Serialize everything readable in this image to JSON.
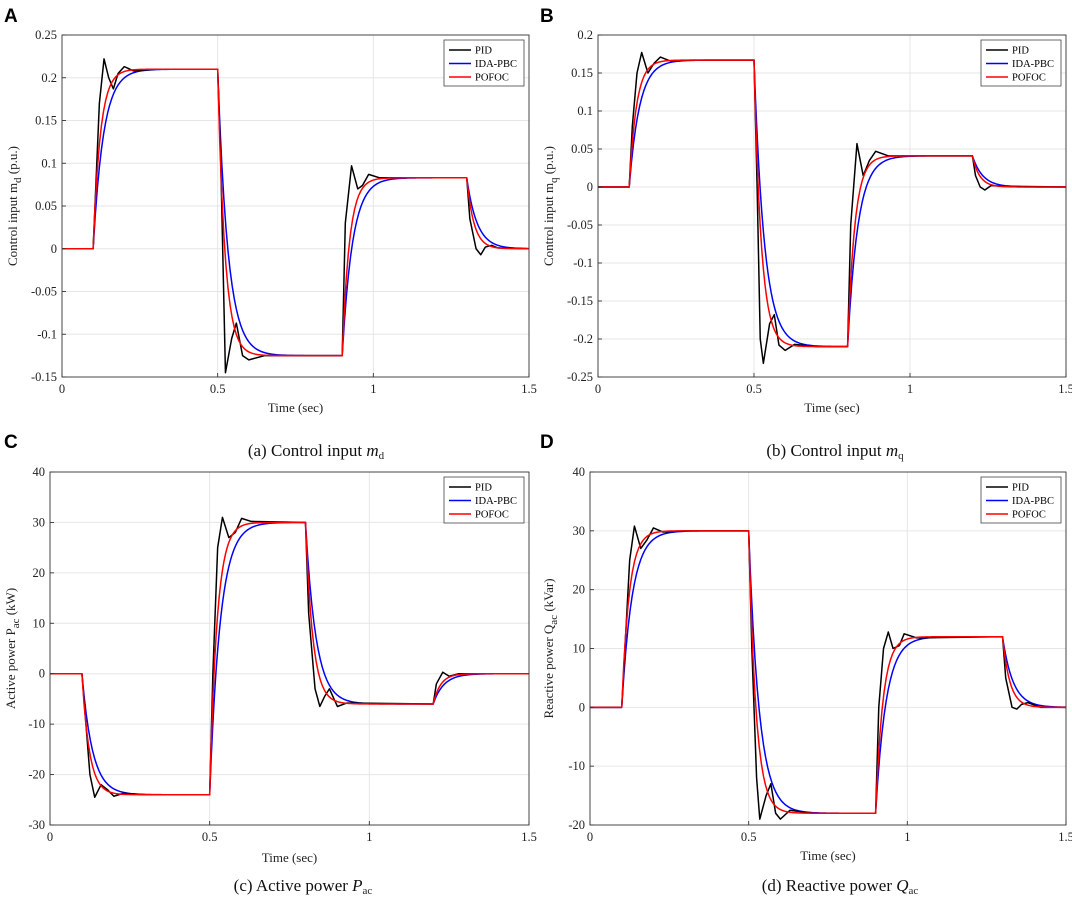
{
  "figure": {
    "captions": [
      {
        "pre": "(a) Control input ",
        "sym": "m",
        "sub": "d"
      },
      {
        "pre": "(b) Control input ",
        "sym": "m",
        "sub": "q"
      },
      {
        "pre": "(c) Active power ",
        "sym": "P",
        "sub": "ac"
      },
      {
        "pre": "(d) Reactive power ",
        "sym": "Q",
        "sub": "ac"
      }
    ]
  },
  "colors": {
    "PID": "#000000",
    "IDA-PBC": "#0000ff",
    "POFOC": "#ff0000"
  },
  "chart_data": [
    {
      "panel": "A",
      "type": "line",
      "title": "",
      "xlabel": "Time (sec)",
      "ylabel": {
        "pre": "Control input m",
        "sub": "d",
        "post": " (p.u.)"
      },
      "xlim": [
        0,
        1.5
      ],
      "ylim": [
        -0.15,
        0.25
      ],
      "xticks": [
        0,
        0.5,
        1,
        1.5
      ],
      "xtick_labels": [
        "0",
        "0.5",
        "1",
        "1.5"
      ],
      "yticks": [
        -0.15,
        -0.1,
        -0.05,
        0,
        0.05,
        0.1,
        0.15,
        0.2,
        0.25
      ],
      "ytick_labels": [
        "-0.15",
        "-0.1",
        "-0.05",
        "0",
        "0.05",
        "0.1",
        "0.15",
        "0.2",
        "0.25"
      ],
      "grid": true,
      "legend": {
        "position": "top-right",
        "entries": [
          "PID",
          "IDA-PBC",
          "POFOC"
        ]
      },
      "series": [
        {
          "name": "PID",
          "color": "#000000",
          "values": [
            [
              0,
              0
            ],
            [
              0.1,
              0
            ],
            [
              0.12,
              0.17
            ],
            [
              0.135,
              0.222
            ],
            [
              0.15,
              0.2
            ],
            [
              0.165,
              0.187
            ],
            [
              0.18,
              0.205
            ],
            [
              0.2,
              0.213
            ],
            [
              0.23,
              0.208
            ],
            [
              0.3,
              0.21
            ],
            [
              0.5,
              0.21
            ],
            [
              0.51,
              0.1
            ],
            [
              0.525,
              -0.145
            ],
            [
              0.545,
              -0.105
            ],
            [
              0.56,
              -0.087
            ],
            [
              0.58,
              -0.125
            ],
            [
              0.6,
              -0.13
            ],
            [
              0.65,
              -0.125
            ],
            [
              0.9,
              -0.125
            ],
            [
              0.91,
              0.03
            ],
            [
              0.93,
              0.097
            ],
            [
              0.95,
              0.07
            ],
            [
              0.965,
              0.074
            ],
            [
              0.985,
              0.087
            ],
            [
              1.02,
              0.083
            ],
            [
              1.3,
              0.083
            ],
            [
              1.31,
              0.035
            ],
            [
              1.33,
              0
            ],
            [
              1.345,
              -0.007
            ],
            [
              1.36,
              0.002
            ],
            [
              1.38,
              0.004
            ],
            [
              1.4,
              0.001
            ],
            [
              1.5,
              0
            ]
          ]
        },
        {
          "name": "IDA-PBC",
          "color": "#0000ff",
          "tau": 0.033,
          "steps": [
            [
              0,
              0
            ],
            [
              0.1,
              0.21
            ],
            [
              0.5,
              -0.125
            ],
            [
              0.9,
              0.083
            ],
            [
              1.3,
              0
            ]
          ],
          "end": 1.5
        },
        {
          "name": "POFOC",
          "color": "#ff0000",
          "tau": 0.023,
          "steps": [
            [
              0,
              0
            ],
            [
              0.1,
              0.21
            ],
            [
              0.5,
              -0.125
            ],
            [
              0.9,
              0.083
            ],
            [
              1.3,
              0
            ]
          ],
          "end": 1.5
        }
      ]
    },
    {
      "panel": "B",
      "type": "line",
      "title": "",
      "xlabel": "Time (sec)",
      "ylabel": {
        "pre": "Control input m",
        "sub": "q",
        "post": " (p.u.)"
      },
      "xlim": [
        0,
        1.5
      ],
      "ylim": [
        -0.25,
        0.2
      ],
      "xticks": [
        0,
        0.5,
        1,
        1.5
      ],
      "xtick_labels": [
        "0",
        "0.5",
        "1",
        "1.5"
      ],
      "yticks": [
        -0.25,
        -0.2,
        -0.15,
        -0.1,
        -0.05,
        0,
        0.05,
        0.1,
        0.15,
        0.2
      ],
      "ytick_labels": [
        "-0.25",
        "-0.2",
        "-0.15",
        "-0.1",
        "-0.05",
        "0",
        "0.05",
        "0.1",
        "0.15",
        "0.2"
      ],
      "grid": true,
      "legend": {
        "position": "top-right",
        "entries": [
          "PID",
          "IDA-PBC",
          "POFOC"
        ]
      },
      "series": [
        {
          "name": "PID",
          "color": "#000000",
          "values": [
            [
              0,
              0
            ],
            [
              0.1,
              0
            ],
            [
              0.11,
              0.08
            ],
            [
              0.125,
              0.15
            ],
            [
              0.14,
              0.177
            ],
            [
              0.16,
              0.15
            ],
            [
              0.18,
              0.163
            ],
            [
              0.2,
              0.171
            ],
            [
              0.23,
              0.166
            ],
            [
              0.3,
              0.167
            ],
            [
              0.5,
              0.167
            ],
            [
              0.51,
              0
            ],
            [
              0.52,
              -0.2
            ],
            [
              0.53,
              -0.232
            ],
            [
              0.55,
              -0.18
            ],
            [
              0.565,
              -0.168
            ],
            [
              0.58,
              -0.208
            ],
            [
              0.6,
              -0.215
            ],
            [
              0.63,
              -0.207
            ],
            [
              0.7,
              -0.21
            ],
            [
              0.8,
              -0.21
            ],
            [
              0.81,
              -0.05
            ],
            [
              0.83,
              0.057
            ],
            [
              0.85,
              0.015
            ],
            [
              0.87,
              0.035
            ],
            [
              0.89,
              0.047
            ],
            [
              0.93,
              0.041
            ],
            [
              1.2,
              0.041
            ],
            [
              1.21,
              0.015
            ],
            [
              1.225,
              0
            ],
            [
              1.24,
              -0.004
            ],
            [
              1.26,
              0.002
            ],
            [
              1.3,
              0.001
            ],
            [
              1.5,
              0
            ]
          ]
        },
        {
          "name": "IDA-PBC",
          "color": "#0000ff",
          "tau": 0.033,
          "steps": [
            [
              0,
              0
            ],
            [
              0.1,
              0.167
            ],
            [
              0.5,
              -0.21
            ],
            [
              0.8,
              0.041
            ],
            [
              1.2,
              0
            ]
          ],
          "end": 1.5
        },
        {
          "name": "POFOC",
          "color": "#ff0000",
          "tau": 0.023,
          "steps": [
            [
              0,
              0
            ],
            [
              0.1,
              0.167
            ],
            [
              0.5,
              -0.21
            ],
            [
              0.8,
              0.041
            ],
            [
              1.2,
              0
            ]
          ],
          "end": 1.5
        }
      ]
    },
    {
      "panel": "C",
      "type": "line",
      "title": "",
      "xlabel": "Time (sec)",
      "ylabel": {
        "pre": "Active power P",
        "sub": "ac",
        "post": " (kW)"
      },
      "xlim": [
        0,
        1.5
      ],
      "ylim": [
        -30,
        40
      ],
      "xticks": [
        0,
        0.5,
        1,
        1.5
      ],
      "xtick_labels": [
        "0",
        "0.5",
        "1",
        "1.5"
      ],
      "yticks": [
        -30,
        -20,
        -10,
        0,
        10,
        20,
        30,
        40
      ],
      "ytick_labels": [
        "-30",
        "-20",
        "-10",
        "0",
        "10",
        "20",
        "30",
        "40"
      ],
      "grid": true,
      "legend": {
        "position": "top-right",
        "entries": [
          "PID",
          "IDA-PBC",
          "POFOC"
        ]
      },
      "series": [
        {
          "name": "PID",
          "color": "#000000",
          "values": [
            [
              0,
              0
            ],
            [
              0.1,
              0
            ],
            [
              0.11,
              -8
            ],
            [
              0.125,
              -20
            ],
            [
              0.14,
              -24.5
            ],
            [
              0.16,
              -22
            ],
            [
              0.18,
              -23
            ],
            [
              0.2,
              -24.3
            ],
            [
              0.23,
              -23.7
            ],
            [
              0.3,
              -24
            ],
            [
              0.5,
              -24
            ],
            [
              0.51,
              0
            ],
            [
              0.525,
              25
            ],
            [
              0.54,
              31
            ],
            [
              0.56,
              27
            ],
            [
              0.58,
              28
            ],
            [
              0.6,
              30.8
            ],
            [
              0.63,
              30.2
            ],
            [
              0.8,
              30
            ],
            [
              0.81,
              12
            ],
            [
              0.83,
              -3
            ],
            [
              0.845,
              -6.5
            ],
            [
              0.86,
              -4.5
            ],
            [
              0.875,
              -3
            ],
            [
              0.9,
              -6.5
            ],
            [
              0.93,
              -5.8
            ],
            [
              1.2,
              -6
            ],
            [
              1.21,
              -2
            ],
            [
              1.23,
              0.3
            ],
            [
              1.25,
              -0.5
            ],
            [
              1.28,
              0
            ],
            [
              1.5,
              0
            ]
          ]
        },
        {
          "name": "IDA-PBC",
          "color": "#0000ff",
          "tau": 0.033,
          "steps": [
            [
              0,
              0
            ],
            [
              0.1,
              -24
            ],
            [
              0.5,
              30
            ],
            [
              0.8,
              -6
            ],
            [
              1.2,
              0
            ]
          ],
          "end": 1.5
        },
        {
          "name": "POFOC",
          "color": "#ff0000",
          "tau": 0.023,
          "steps": [
            [
              0,
              0
            ],
            [
              0.1,
              -24
            ],
            [
              0.5,
              30
            ],
            [
              0.8,
              -6
            ],
            [
              1.2,
              0
            ]
          ],
          "end": 1.5
        }
      ]
    },
    {
      "panel": "D",
      "type": "line",
      "title": "",
      "xlabel": "Time (sec)",
      "ylabel": {
        "pre": "Reactive power Q",
        "sub": "ac",
        "post": " (kVar)"
      },
      "xlim": [
        0,
        1.5
      ],
      "ylim": [
        -20,
        40
      ],
      "xticks": [
        0,
        0.5,
        1,
        1.5
      ],
      "xtick_labels": [
        "0",
        "0.5",
        "1",
        "1.5"
      ],
      "yticks": [
        -20,
        -10,
        0,
        10,
        20,
        30,
        40
      ],
      "ytick_labels": [
        "-20",
        "-10",
        "0",
        "10",
        "20",
        "30",
        "40"
      ],
      "grid": true,
      "legend": {
        "position": "top-right",
        "entries": [
          "PID",
          "IDA-PBC",
          "POFOC"
        ]
      },
      "series": [
        {
          "name": "PID",
          "color": "#000000",
          "values": [
            [
              0,
              0
            ],
            [
              0.1,
              0
            ],
            [
              0.11,
              10
            ],
            [
              0.125,
              25
            ],
            [
              0.14,
              30.8
            ],
            [
              0.16,
              27
            ],
            [
              0.18,
              28.5
            ],
            [
              0.2,
              30.5
            ],
            [
              0.23,
              29.8
            ],
            [
              0.3,
              30
            ],
            [
              0.5,
              30
            ],
            [
              0.51,
              10
            ],
            [
              0.525,
              -12
            ],
            [
              0.535,
              -19
            ],
            [
              0.555,
              -15
            ],
            [
              0.57,
              -13
            ],
            [
              0.585,
              -18
            ],
            [
              0.6,
              -19
            ],
            [
              0.63,
              -17.5
            ],
            [
              0.7,
              -18
            ],
            [
              0.9,
              -18
            ],
            [
              0.91,
              0
            ],
            [
              0.925,
              10
            ],
            [
              0.94,
              12.8
            ],
            [
              0.955,
              10
            ],
            [
              0.975,
              10.5
            ],
            [
              0.99,
              12.5
            ],
            [
              1.03,
              11.8
            ],
            [
              1.3,
              12
            ],
            [
              1.31,
              5
            ],
            [
              1.33,
              0
            ],
            [
              1.345,
              -0.3
            ],
            [
              1.36,
              0.5
            ],
            [
              1.38,
              0.8
            ],
            [
              1.42,
              0
            ],
            [
              1.5,
              0
            ]
          ]
        },
        {
          "name": "IDA-PBC",
          "color": "#0000ff",
          "tau": 0.033,
          "steps": [
            [
              0,
              0
            ],
            [
              0.1,
              30
            ],
            [
              0.5,
              -18
            ],
            [
              0.9,
              12
            ],
            [
              1.3,
              0
            ]
          ],
          "end": 1.5
        },
        {
          "name": "POFOC",
          "color": "#ff0000",
          "tau": 0.023,
          "steps": [
            [
              0,
              0
            ],
            [
              0.1,
              30
            ],
            [
              0.5,
              -18
            ],
            [
              0.9,
              12
            ],
            [
              1.3,
              0
            ]
          ],
          "end": 1.5
        }
      ]
    }
  ]
}
